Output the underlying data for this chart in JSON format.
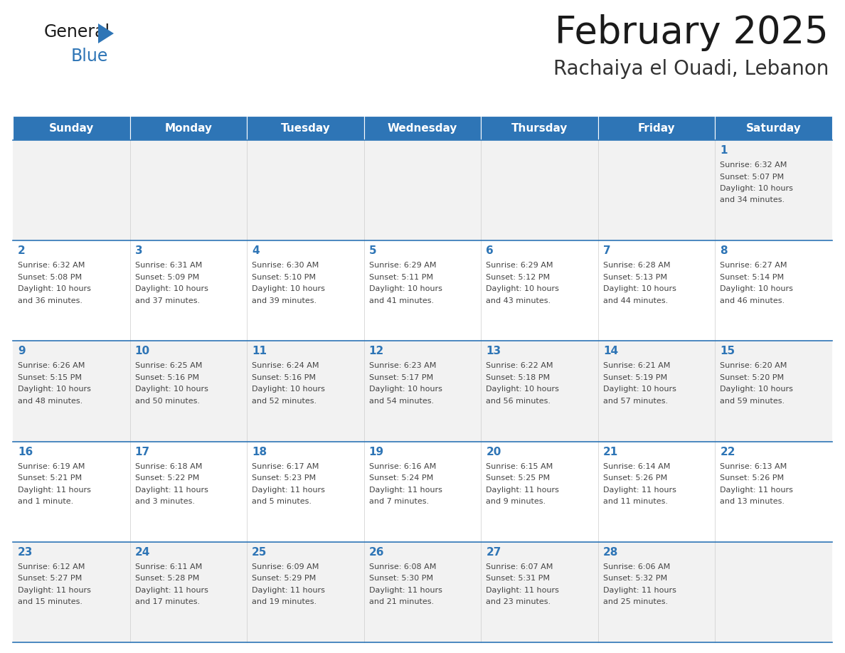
{
  "title": "February 2025",
  "subtitle": "Rachaiya el Ouadi, Lebanon",
  "header_color": "#2E75B6",
  "header_text_color": "#FFFFFF",
  "cell_bg_row0": "#F2F2F2",
  "cell_bg_row1": "#FFFFFF",
  "separator_color": "#2E75B6",
  "text_color": "#444444",
  "day_number_color": "#2E75B6",
  "day_headers": [
    "Sunday",
    "Monday",
    "Tuesday",
    "Wednesday",
    "Thursday",
    "Friday",
    "Saturday"
  ],
  "calendar_data": [
    [
      null,
      null,
      null,
      null,
      null,
      null,
      {
        "day": "1",
        "sunrise": "6:32 AM",
        "sunset": "5:07 PM",
        "daylight_line1": "Daylight: 10 hours",
        "daylight_line2": "and 34 minutes."
      }
    ],
    [
      {
        "day": "2",
        "sunrise": "6:32 AM",
        "sunset": "5:08 PM",
        "daylight_line1": "Daylight: 10 hours",
        "daylight_line2": "and 36 minutes."
      },
      {
        "day": "3",
        "sunrise": "6:31 AM",
        "sunset": "5:09 PM",
        "daylight_line1": "Daylight: 10 hours",
        "daylight_line2": "and 37 minutes."
      },
      {
        "day": "4",
        "sunrise": "6:30 AM",
        "sunset": "5:10 PM",
        "daylight_line1": "Daylight: 10 hours",
        "daylight_line2": "and 39 minutes."
      },
      {
        "day": "5",
        "sunrise": "6:29 AM",
        "sunset": "5:11 PM",
        "daylight_line1": "Daylight: 10 hours",
        "daylight_line2": "and 41 minutes."
      },
      {
        "day": "6",
        "sunrise": "6:29 AM",
        "sunset": "5:12 PM",
        "daylight_line1": "Daylight: 10 hours",
        "daylight_line2": "and 43 minutes."
      },
      {
        "day": "7",
        "sunrise": "6:28 AM",
        "sunset": "5:13 PM",
        "daylight_line1": "Daylight: 10 hours",
        "daylight_line2": "and 44 minutes."
      },
      {
        "day": "8",
        "sunrise": "6:27 AM",
        "sunset": "5:14 PM",
        "daylight_line1": "Daylight: 10 hours",
        "daylight_line2": "and 46 minutes."
      }
    ],
    [
      {
        "day": "9",
        "sunrise": "6:26 AM",
        "sunset": "5:15 PM",
        "daylight_line1": "Daylight: 10 hours",
        "daylight_line2": "and 48 minutes."
      },
      {
        "day": "10",
        "sunrise": "6:25 AM",
        "sunset": "5:16 PM",
        "daylight_line1": "Daylight: 10 hours",
        "daylight_line2": "and 50 minutes."
      },
      {
        "day": "11",
        "sunrise": "6:24 AM",
        "sunset": "5:16 PM",
        "daylight_line1": "Daylight: 10 hours",
        "daylight_line2": "and 52 minutes."
      },
      {
        "day": "12",
        "sunrise": "6:23 AM",
        "sunset": "5:17 PM",
        "daylight_line1": "Daylight: 10 hours",
        "daylight_line2": "and 54 minutes."
      },
      {
        "day": "13",
        "sunrise": "6:22 AM",
        "sunset": "5:18 PM",
        "daylight_line1": "Daylight: 10 hours",
        "daylight_line2": "and 56 minutes."
      },
      {
        "day": "14",
        "sunrise": "6:21 AM",
        "sunset": "5:19 PM",
        "daylight_line1": "Daylight: 10 hours",
        "daylight_line2": "and 57 minutes."
      },
      {
        "day": "15",
        "sunrise": "6:20 AM",
        "sunset": "5:20 PM",
        "daylight_line1": "Daylight: 10 hours",
        "daylight_line2": "and 59 minutes."
      }
    ],
    [
      {
        "day": "16",
        "sunrise": "6:19 AM",
        "sunset": "5:21 PM",
        "daylight_line1": "Daylight: 11 hours",
        "daylight_line2": "and 1 minute."
      },
      {
        "day": "17",
        "sunrise": "6:18 AM",
        "sunset": "5:22 PM",
        "daylight_line1": "Daylight: 11 hours",
        "daylight_line2": "and 3 minutes."
      },
      {
        "day": "18",
        "sunrise": "6:17 AM",
        "sunset": "5:23 PM",
        "daylight_line1": "Daylight: 11 hours",
        "daylight_line2": "and 5 minutes."
      },
      {
        "day": "19",
        "sunrise": "6:16 AM",
        "sunset": "5:24 PM",
        "daylight_line1": "Daylight: 11 hours",
        "daylight_line2": "and 7 minutes."
      },
      {
        "day": "20",
        "sunrise": "6:15 AM",
        "sunset": "5:25 PM",
        "daylight_line1": "Daylight: 11 hours",
        "daylight_line2": "and 9 minutes."
      },
      {
        "day": "21",
        "sunrise": "6:14 AM",
        "sunset": "5:26 PM",
        "daylight_line1": "Daylight: 11 hours",
        "daylight_line2": "and 11 minutes."
      },
      {
        "day": "22",
        "sunrise": "6:13 AM",
        "sunset": "5:26 PM",
        "daylight_line1": "Daylight: 11 hours",
        "daylight_line2": "and 13 minutes."
      }
    ],
    [
      {
        "day": "23",
        "sunrise": "6:12 AM",
        "sunset": "5:27 PM",
        "daylight_line1": "Daylight: 11 hours",
        "daylight_line2": "and 15 minutes."
      },
      {
        "day": "24",
        "sunrise": "6:11 AM",
        "sunset": "5:28 PM",
        "daylight_line1": "Daylight: 11 hours",
        "daylight_line2": "and 17 minutes."
      },
      {
        "day": "25",
        "sunrise": "6:09 AM",
        "sunset": "5:29 PM",
        "daylight_line1": "Daylight: 11 hours",
        "daylight_line2": "and 19 minutes."
      },
      {
        "day": "26",
        "sunrise": "6:08 AM",
        "sunset": "5:30 PM",
        "daylight_line1": "Daylight: 11 hours",
        "daylight_line2": "and 21 minutes."
      },
      {
        "day": "27",
        "sunrise": "6:07 AM",
        "sunset": "5:31 PM",
        "daylight_line1": "Daylight: 11 hours",
        "daylight_line2": "and 23 minutes."
      },
      {
        "day": "28",
        "sunrise": "6:06 AM",
        "sunset": "5:32 PM",
        "daylight_line1": "Daylight: 11 hours",
        "daylight_line2": "and 25 minutes."
      },
      null
    ]
  ],
  "fig_width": 11.88,
  "fig_height": 9.18,
  "dpi": 100
}
